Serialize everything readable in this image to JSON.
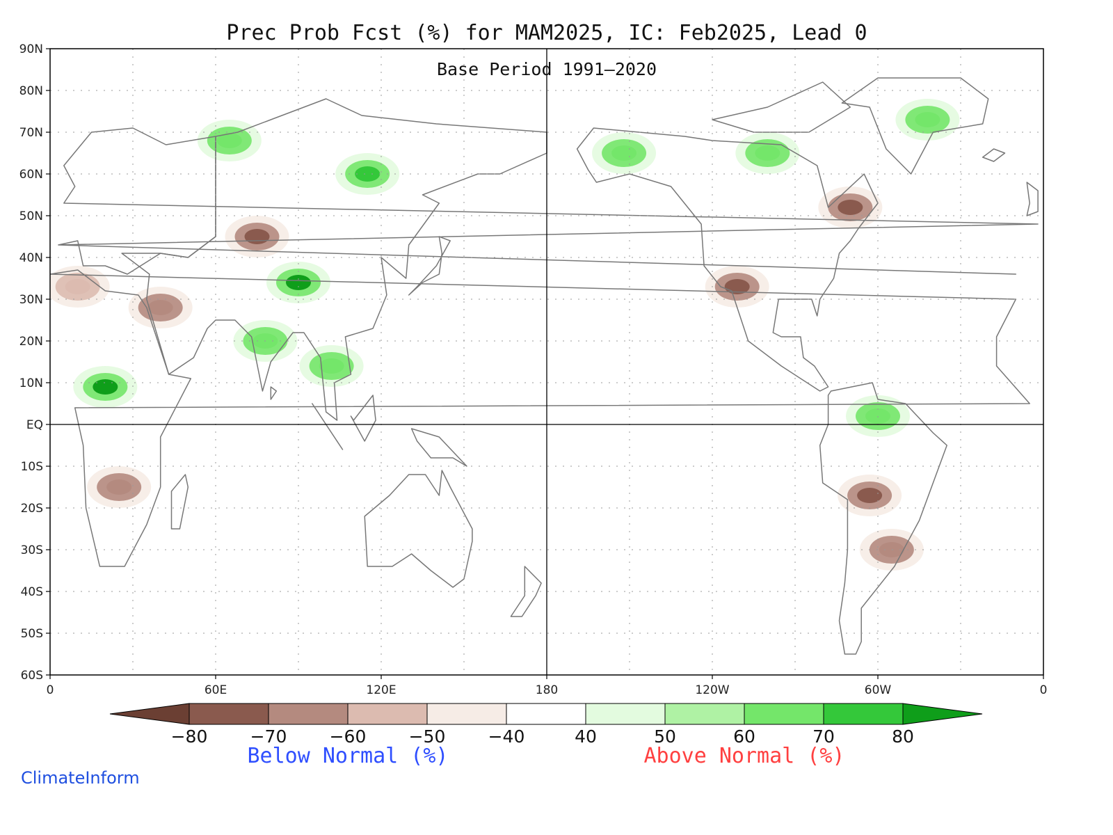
{
  "title": "Prec Prob Fcst (%) for MAM2025, IC: Feb2025, Lead 0",
  "subtitle": "Base Period 1991–2020",
  "credit": "ClimateInform",
  "credit_color": "#1f4fe0",
  "latitude_labels": [
    "90N",
    "80N",
    "70N",
    "60N",
    "50N",
    "40N",
    "30N",
    "20N",
    "10N",
    "EQ",
    "10S",
    "20S",
    "30S",
    "40S",
    "50S",
    "60S"
  ],
  "longitude_labels": [
    {
      "lon": 0,
      "label": "0"
    },
    {
      "lon": 60,
      "label": "60E"
    },
    {
      "lon": 120,
      "label": "120E"
    },
    {
      "lon": 180,
      "label": "180"
    },
    {
      "lon": 240,
      "label": "120W"
    },
    {
      "lon": 300,
      "label": "60W"
    },
    {
      "lon": 360,
      "label": "0"
    }
  ],
  "map_extent": {
    "lon": [
      0,
      360
    ],
    "lat": [
      -60,
      90
    ]
  },
  "colorbar": {
    "bins": [
      {
        "label": "-80",
        "color": "#8a5a4e"
      },
      {
        "label": "-70",
        "color": "#b48a7f"
      },
      {
        "label": "-60",
        "color": "#dcbbb0"
      },
      {
        "label": "-50",
        "color": "#f6ece6"
      },
      {
        "label": "-40",
        "color": "#ffffff"
      },
      {
        "label": "40",
        "color": "#e3fbdf"
      },
      {
        "label": "50",
        "color": "#aff2a4"
      },
      {
        "label": "60",
        "color": "#74e66a"
      },
      {
        "label": "70",
        "color": "#34c83a"
      },
      {
        "label": "80",
        "color": ""
      }
    ],
    "low_extend_color": "#6b3f33",
    "high_extend_color": "#0f9e1a"
  },
  "legend": {
    "below_label": "Below Normal (%)",
    "below_color": "#2f4fff",
    "above_label": "Above Normal (%)",
    "above_color": "#ff4040"
  },
  "anomaly_regions": [
    {
      "region": "Sahel / Central Africa",
      "category": "above",
      "level": 80,
      "lon": 20,
      "lat": 9
    },
    {
      "region": "Tibetan Plateau",
      "category": "above",
      "level": 80,
      "lon": 90,
      "lat": 34
    },
    {
      "region": "Central Siberia",
      "category": "above",
      "level": 70,
      "lon": 115,
      "lat": 60
    },
    {
      "region": "West Siberia",
      "category": "above",
      "level": 60,
      "lon": 65,
      "lat": 68
    },
    {
      "region": "India",
      "category": "above",
      "level": 60,
      "lon": 78,
      "lat": 20
    },
    {
      "region": "Southeast Asia",
      "category": "above",
      "level": 60,
      "lon": 102,
      "lat": 14
    },
    {
      "region": "Alaska",
      "category": "above",
      "level": 60,
      "lon": 208,
      "lat": 65
    },
    {
      "region": "Northern Canada",
      "category": "above",
      "level": 60,
      "lon": 260,
      "lat": 65
    },
    {
      "region": "Greenland",
      "category": "above",
      "level": 60,
      "lon": 318,
      "lat": 73
    },
    {
      "region": "Northern South America",
      "category": "above",
      "level": 60,
      "lon": 300,
      "lat": 2
    },
    {
      "region": "Southwest United States",
      "category": "below",
      "level": -70,
      "lon": 249,
      "lat": 33
    },
    {
      "region": "Eastern Canada",
      "category": "below",
      "level": -70,
      "lon": 290,
      "lat": 52
    },
    {
      "region": "Central Asia",
      "category": "below",
      "level": -70,
      "lon": 75,
      "lat": 45
    },
    {
      "region": "Middle East",
      "category": "below",
      "level": -60,
      "lon": 40,
      "lat": 28
    },
    {
      "region": "Bolivia",
      "category": "below",
      "level": -70,
      "lon": 297,
      "lat": -17
    },
    {
      "region": "Southern Brazil",
      "category": "below",
      "level": -60,
      "lon": 305,
      "lat": -30
    },
    {
      "region": "Southern Africa",
      "category": "below",
      "level": -60,
      "lon": 25,
      "lat": -15
    },
    {
      "region": "Mediterranean / North Africa",
      "category": "below",
      "level": -50,
      "lon": 10,
      "lat": 33
    }
  ]
}
